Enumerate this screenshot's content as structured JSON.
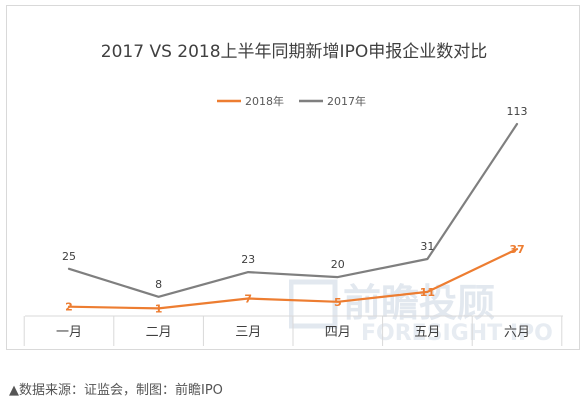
{
  "chart_data": {
    "type": "line",
    "title": "2017 VS 2018上半年同期新增IPO申报企业数对比",
    "categories": [
      "一月",
      "二月",
      "三月",
      "四月",
      "五月",
      "六月"
    ],
    "series": [
      {
        "name": "2018年",
        "color": "#ed7d31",
        "values": [
          2,
          1,
          7,
          5,
          11,
          37
        ]
      },
      {
        "name": "2017年",
        "color": "#7f7f7f",
        "values": [
          25,
          8,
          23,
          20,
          31,
          113
        ]
      }
    ],
    "ylim": [
      0,
      130
    ],
    "legend_position": "top-center",
    "grid": false
  },
  "watermark": {
    "cn": "前瞻投顾",
    "en": "FORESIGHT IPO"
  },
  "source_note": "▲数据来源：证监会，制图：前瞻IPO"
}
